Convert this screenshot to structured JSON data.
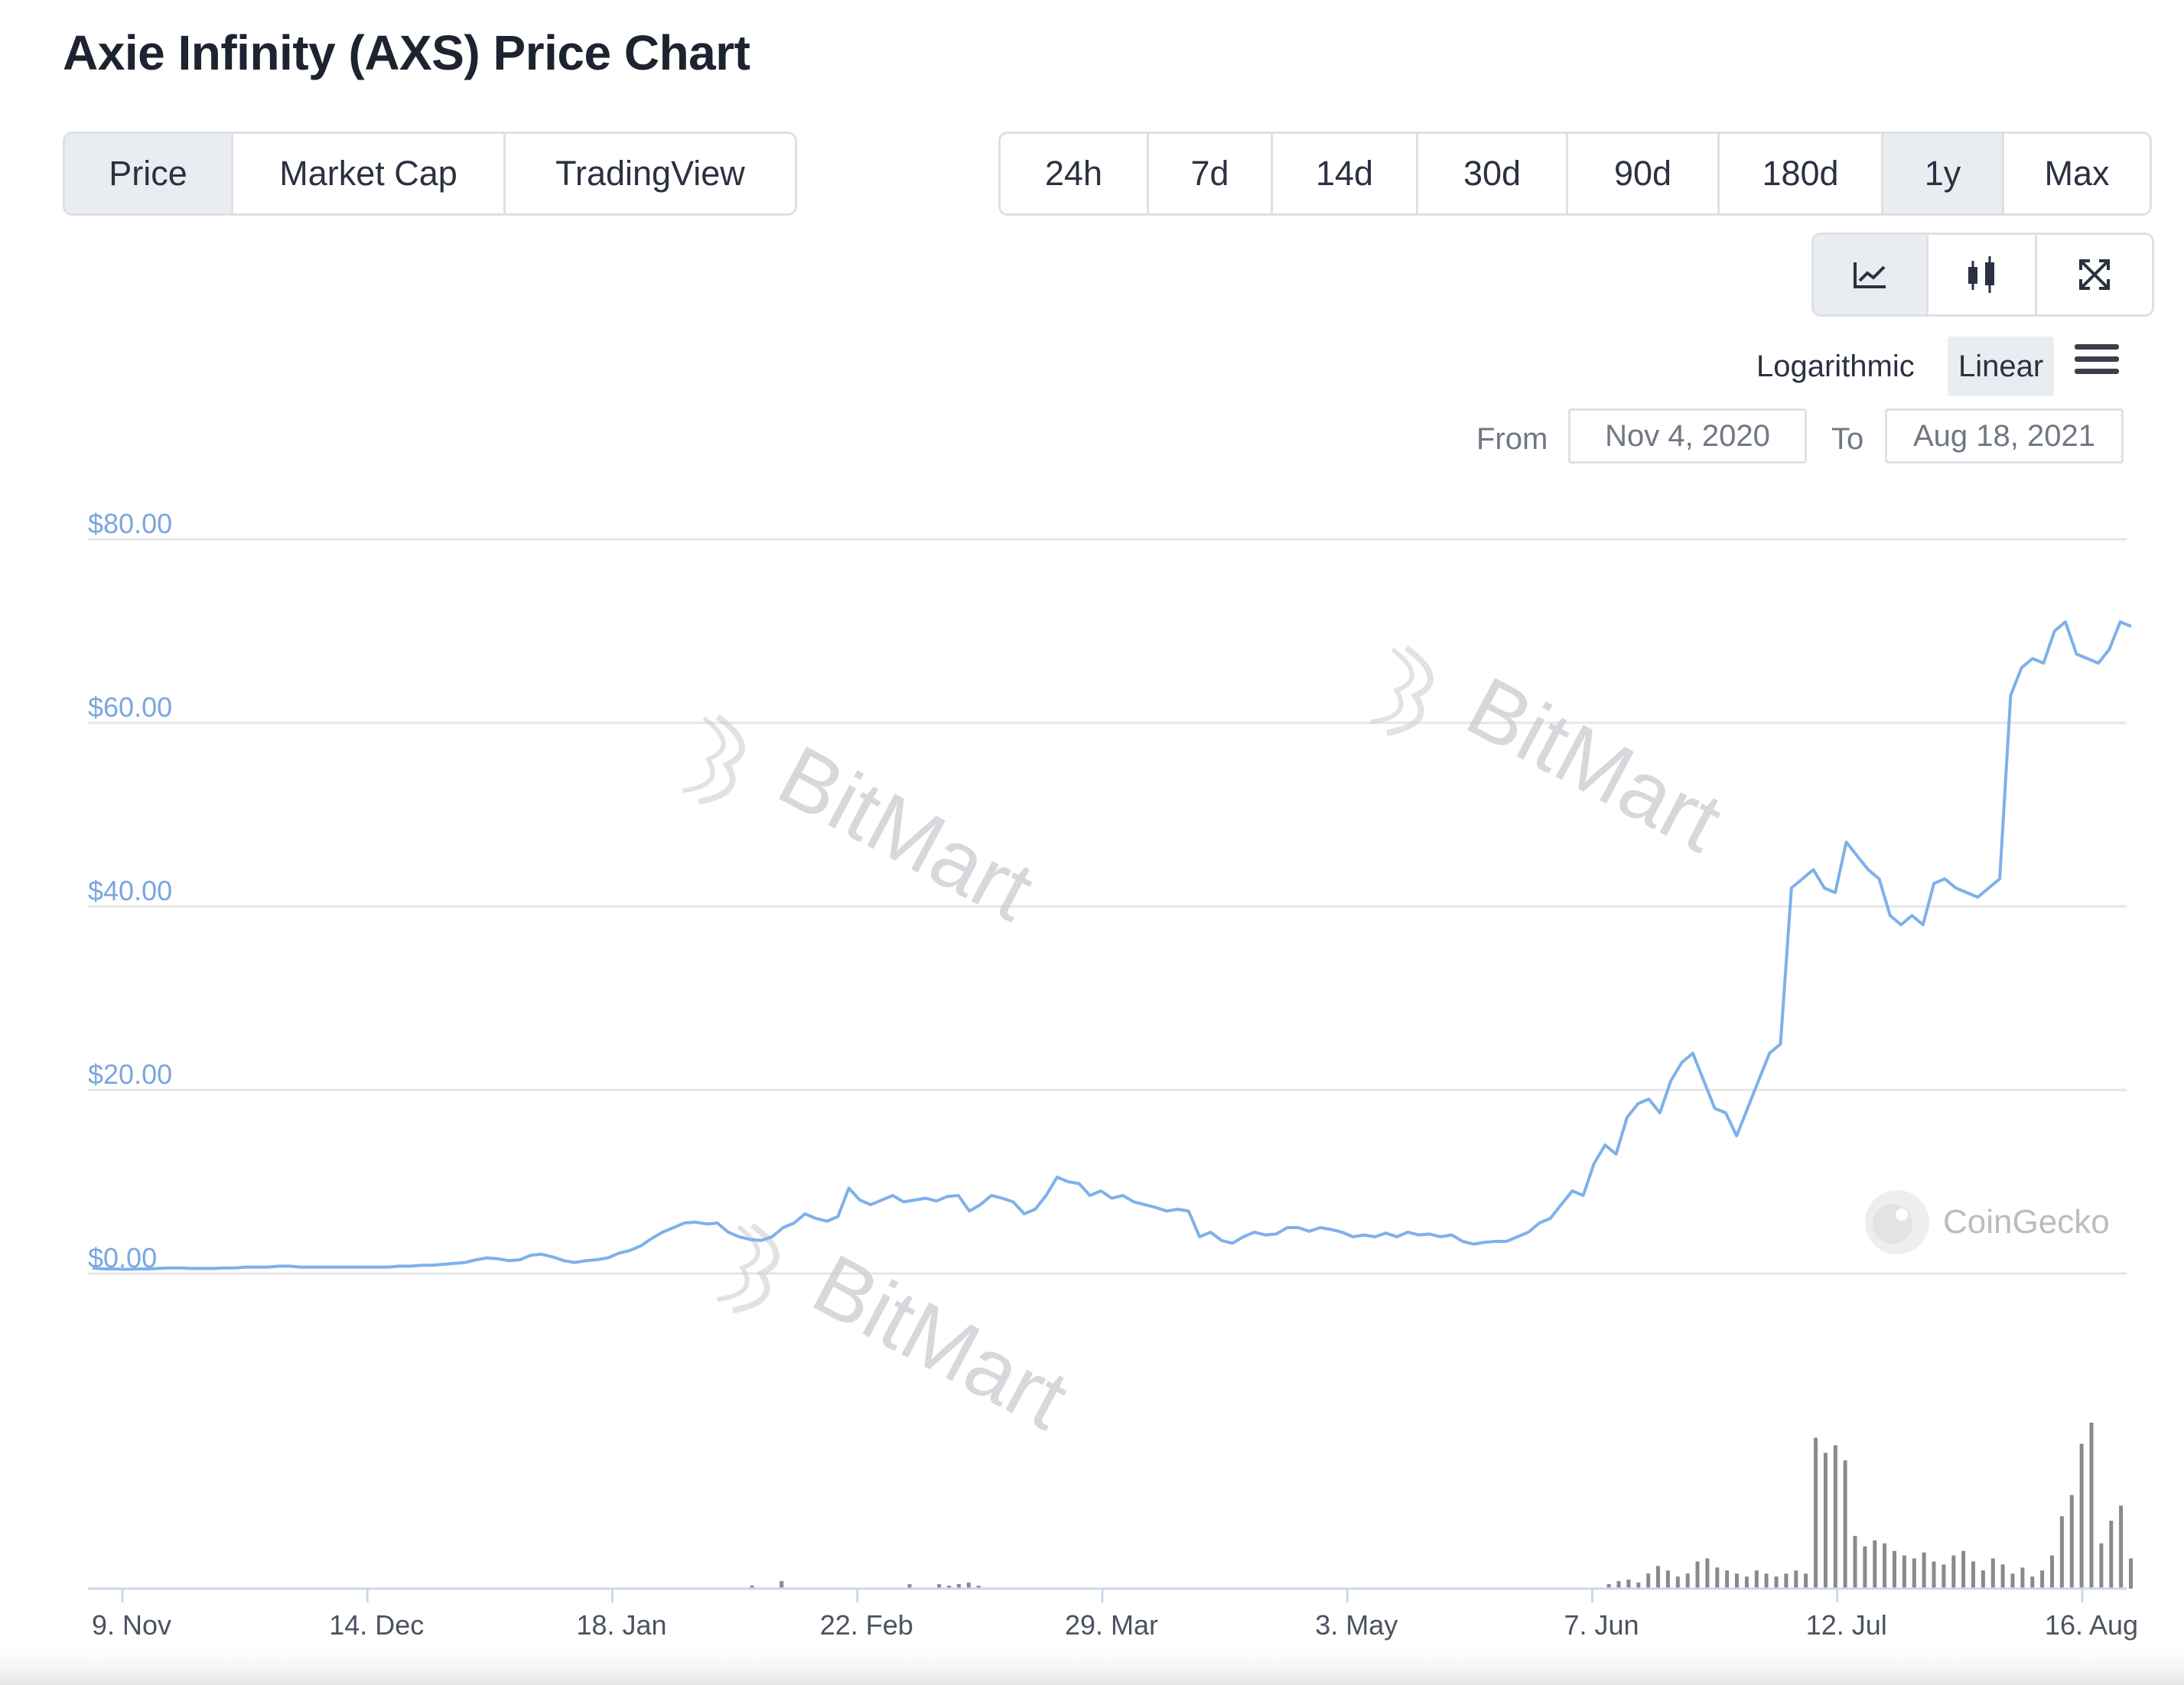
{
  "title": "Axie Infinity (AXS) Price Chart",
  "view_tabs": [
    {
      "label": "Price",
      "active": true
    },
    {
      "label": "Market Cap",
      "active": false
    },
    {
      "label": "TradingView",
      "active": false
    }
  ],
  "range_tabs": [
    {
      "label": "24h",
      "active": false
    },
    {
      "label": "7d",
      "active": false
    },
    {
      "label": "14d",
      "active": false
    },
    {
      "label": "30d",
      "active": false
    },
    {
      "label": "90d",
      "active": false
    },
    {
      "label": "180d",
      "active": false
    },
    {
      "label": "1y",
      "active": true
    },
    {
      "label": "Max",
      "active": false
    }
  ],
  "chart_type_icons": [
    "line-chart-icon",
    "candlestick-icon",
    "fullscreen-icon"
  ],
  "scale": {
    "log_label": "Logarithmic",
    "linear_label": "Linear",
    "selected": "Linear"
  },
  "date_range": {
    "from_label": "From",
    "from_value": "Nov 4, 2020",
    "to_label": "To",
    "to_value": "Aug 18, 2021"
  },
  "watermarks": {
    "bitmart": "BitMart",
    "coingecko": "CoinGecko"
  },
  "colors": {
    "line": "#7eb1ea",
    "volume": "#8a8a8a",
    "axis_label": "#7ba6de"
  },
  "chart_data": {
    "type": "line",
    "title": "Axie Infinity (AXS) Price Chart",
    "x_start": "Nov 4, 2020",
    "x_end": "Aug 18, 2021",
    "ylim": [
      0,
      80
    ],
    "y_ticks": [
      0,
      20,
      40,
      60,
      80
    ],
    "y_tick_labels": [
      "$0.00",
      "$20.00",
      "$40.00",
      "$60.00",
      "$80.00"
    ],
    "x_tick_labels": [
      "9. Nov",
      "14. Dec",
      "18. Jan",
      "22. Feb",
      "29. Mar",
      "3. May",
      "7. Jun",
      "12. Jul",
      "16. Aug"
    ],
    "grid": true,
    "series": [
      {
        "values": [
          0.6,
          0.5,
          0.5,
          0.45,
          0.5,
          0.5,
          0.55,
          0.6,
          0.6,
          0.55,
          0.55,
          0.55,
          0.6,
          0.6,
          0.7,
          0.7,
          0.7,
          0.8,
          0.8,
          0.7,
          0.7,
          0.7,
          0.7,
          0.7,
          0.7,
          0.7,
          0.7,
          0.7,
          0.8,
          0.8,
          0.9,
          0.9,
          1.0,
          1.1,
          1.2,
          1.5,
          1.7,
          1.6,
          1.4,
          1.5,
          2.0,
          2.1,
          1.8,
          1.4,
          1.2,
          1.4,
          1.5,
          1.7,
          2.2,
          2.5,
          3.0,
          3.8,
          4.5,
          5.0,
          5.5,
          5.6,
          5.4,
          5.5,
          4.5,
          4.0,
          3.7,
          3.6,
          4.0,
          5.0,
          5.5,
          6.5,
          6.0,
          5.7,
          6.2,
          9.3,
          8.0,
          7.5,
          8.0,
          8.5,
          7.8,
          8.0,
          8.2,
          7.9,
          8.4,
          8.5,
          6.8,
          7.5,
          8.5,
          8.2,
          7.8,
          6.5,
          7.0,
          8.5,
          10.5,
          10.0,
          9.8,
          8.5,
          9.0,
          8.2,
          8.5,
          7.8,
          7.5,
          7.2,
          6.8,
          7.0,
          6.8,
          4.0,
          4.5,
          3.6,
          3.3,
          4.0,
          4.5,
          4.2,
          4.3,
          5.0,
          5.0,
          4.6,
          5.0,
          4.8,
          4.5,
          4.0,
          4.2,
          4.0,
          4.4,
          4.0,
          4.5,
          4.2,
          4.3,
          4.0,
          4.2,
          3.5,
          3.2,
          3.4,
          3.5,
          3.5,
          4.0,
          4.5,
          5.5,
          6.0,
          7.5,
          9.0,
          8.5,
          12.0,
          14.0,
          13.0,
          17.0,
          18.5,
          19.0,
          17.5,
          21.0,
          23.0,
          24.0,
          21.0,
          18.0,
          17.5,
          15.0,
          18.0,
          21.0,
          24.0,
          25.0,
          42.0,
          43.0,
          44.0,
          42.0,
          41.5,
          47.0,
          45.5,
          44.0,
          43.0,
          39.0,
          38.0,
          39.0,
          38.0,
          42.5,
          43.0,
          42.0,
          41.5,
          41.0,
          42.0,
          43.0,
          63.0,
          66.0,
          67.0,
          66.5,
          70.0,
          71.0,
          67.5,
          67.0,
          66.5,
          68.0,
          71.0,
          70.5
        ]
      }
    ],
    "volume_values": [
      0,
      0,
      0,
      0,
      0,
      0,
      0,
      0,
      0,
      0,
      0,
      0,
      0,
      0,
      0,
      0,
      0,
      0,
      0,
      0,
      0,
      0,
      0,
      0,
      0,
      0,
      0,
      0,
      0,
      0,
      0,
      0,
      0,
      0,
      0,
      0,
      0,
      0,
      0,
      0,
      0,
      0,
      0,
      0,
      0,
      0,
      0,
      0,
      0,
      0,
      0,
      0,
      0,
      0,
      0,
      0,
      0,
      0,
      0,
      0,
      0,
      0,
      0,
      0,
      0,
      0,
      0,
      2,
      0,
      0,
      5,
      0,
      0,
      0,
      0,
      0,
      0,
      0,
      0,
      0,
      0,
      0,
      0,
      3,
      0,
      0,
      3,
      2,
      3,
      4,
      2,
      0,
      0,
      0,
      0,
      0,
      0,
      0,
      0,
      0,
      0,
      0,
      0,
      0,
      0,
      0,
      0,
      0,
      0,
      0,
      0,
      0,
      0,
      0,
      0,
      0,
      0,
      0,
      0,
      0,
      0,
      0,
      0,
      0,
      0,
      0,
      0,
      0,
      0,
      0,
      0,
      0,
      0,
      0,
      0,
      0,
      0,
      0,
      0,
      0,
      0,
      0,
      0,
      0,
      0,
      0,
      0,
      0,
      0,
      0,
      0,
      0,
      0,
      0,
      3,
      5,
      6,
      4,
      10,
      15,
      12,
      8,
      10,
      18,
      20,
      14,
      12,
      10,
      8,
      12,
      10,
      8,
      10,
      12,
      10,
      100,
      90,
      95,
      85,
      35,
      28,
      32,
      30,
      25,
      22,
      20,
      24,
      18,
      16,
      22,
      25,
      18,
      12,
      20,
      16,
      10,
      14,
      8,
      12,
      22,
      48,
      62,
      96,
      110,
      30,
      45,
      55,
      20
    ]
  }
}
